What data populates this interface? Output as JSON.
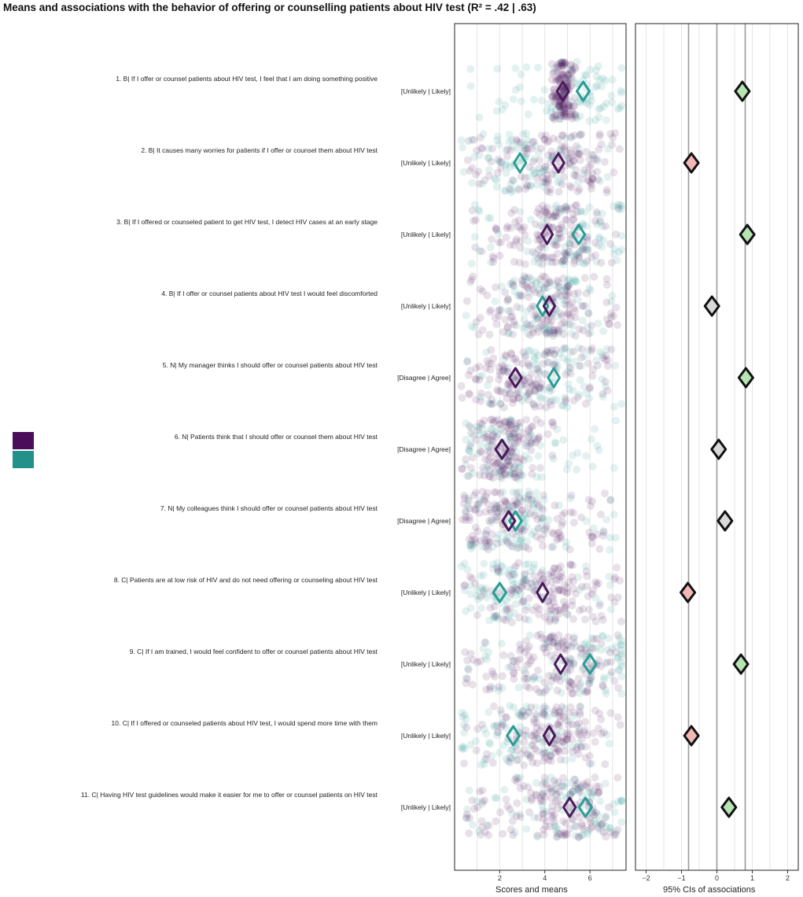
{
  "title": "Means and associations with the behavior of offering or counselling patients about HIV test (R² = .42 | .63)",
  "colors": {
    "group_a": "#4a1a5c",
    "group_b": "#2a9d95",
    "positive_fill": "#b7e4b3",
    "negative_fill": "#f2b8b5",
    "neutral_fill": "#d9d9d9",
    "legend_a": "#4b0d5a",
    "legend_b": "#23908a"
  },
  "legend": {
    "swatches": [
      "group_a",
      "group_b"
    ]
  },
  "chart_data": [
    {
      "type": "scatter",
      "xlabel": "Scores and means",
      "xlim": [
        0,
        7.6
      ],
      "x_ticks": [
        2,
        4,
        6
      ],
      "items": [
        {
          "label": "1. B| If I offer or counsel patients about HIV test, I feel that I am doing something positive",
          "anchors": "[Unlikely | Likely]",
          "mean_a": 4.8,
          "mean_b": 5.7,
          "spread_a": [
            4.3,
            5.4
          ],
          "spread_b": [
            0.5,
            7.4
          ]
        },
        {
          "label": "2. B| It causes many worries for patients if I offer or counsel them about HIV test",
          "anchors": "[Unlikely | Likely]",
          "mean_a": 4.6,
          "mean_b": 2.9,
          "spread_a": [
            0.5,
            7.4
          ],
          "spread_b": [
            0.3,
            7.0
          ]
        },
        {
          "label": "3. B| If I offered or counseled patient to get HIV test, I detect HIV cases at an early stage",
          "anchors": "[Unlikely | Likely]",
          "mean_a": 4.1,
          "mean_b": 5.5,
          "spread_a": [
            0.7,
            7.3
          ],
          "spread_b": [
            0.5,
            7.4
          ]
        },
        {
          "label": "4. B| If I offer or counsel patients about HIV test I would feel discomforted",
          "anchors": "[Unlikely | Likely]",
          "mean_a": 4.2,
          "mean_b": 3.9,
          "spread_a": [
            0.4,
            7.4
          ],
          "spread_b": [
            0.5,
            7.2
          ]
        },
        {
          "label": "5. N| My manager thinks I should offer or counsel patients about HIV test",
          "anchors": "[Disagree | Agree]",
          "mean_a": 2.7,
          "mean_b": 4.4,
          "spread_a": [
            0.3,
            7.2
          ],
          "spread_b": [
            0.5,
            7.4
          ]
        },
        {
          "label": "6. N| Patients think that I should offer or counsel them about HIV test",
          "anchors": "[Disagree | Agree]",
          "mean_a": 2.1,
          "mean_b": 2.1,
          "spread_a": [
            0.3,
            4.4
          ],
          "spread_b": [
            0.5,
            7.2
          ]
        },
        {
          "label": "7. N| My colleagues think I should offer or counsel patients about HIV test",
          "anchors": "[Disagree | Agree]",
          "mean_a": 2.4,
          "mean_b": 2.7,
          "spread_a": [
            0.3,
            7.0
          ],
          "spread_b": [
            0.5,
            7.2
          ]
        },
        {
          "label": "8. C| Patients are at low risk of HIV and do not need offering or counseling about HIV test",
          "anchors": "[Unlikely | Likely]",
          "mean_a": 3.9,
          "mean_b": 2.0,
          "spread_a": [
            0.4,
            7.4
          ],
          "spread_b": [
            0.3,
            7.0
          ]
        },
        {
          "label": "9. C| If I am trained, I would feel confident to offer or counsel patients about HIV test",
          "anchors": "[Unlikely | Likely]",
          "mean_a": 4.7,
          "mean_b": 6.0,
          "spread_a": [
            0.4,
            7.3
          ],
          "spread_b": [
            0.5,
            7.4
          ]
        },
        {
          "label": "10. C| If I offered or counseled patients about HIV test, I would spend more time with them",
          "anchors": "[Unlikely | Likely]",
          "mean_a": 4.2,
          "mean_b": 2.6,
          "spread_a": [
            0.4,
            7.4
          ],
          "spread_b": [
            0.3,
            7.0
          ]
        },
        {
          "label": "11. C| Having HIV test guidelines would make it easier for me to offer or counsel patients on HIV test",
          "anchors": "[Unlikely | Likely]",
          "mean_a": 5.1,
          "mean_b": 5.8,
          "spread_a": [
            0.5,
            7.4
          ],
          "spread_b": [
            0.5,
            7.4
          ]
        }
      ]
    },
    {
      "type": "scatter",
      "xlabel": "95% CIs of associations",
      "xlim": [
        -2.3,
        2.3
      ],
      "x_ticks": [
        -2,
        -1,
        0,
        1,
        2
      ],
      "x_tick_labels": [
        "−2",
        "−1",
        "0",
        "1",
        "2"
      ],
      "reference_lines": [
        -0.8,
        0,
        0.8
      ],
      "associations": [
        {
          "value": 0.72,
          "fill": "positive"
        },
        {
          "value": -0.72,
          "fill": "negative"
        },
        {
          "value": 0.86,
          "fill": "positive"
        },
        {
          "value": -0.14,
          "fill": "neutral"
        },
        {
          "value": 0.82,
          "fill": "positive"
        },
        {
          "value": 0.05,
          "fill": "neutral"
        },
        {
          "value": 0.23,
          "fill": "neutral"
        },
        {
          "value": -0.82,
          "fill": "negative"
        },
        {
          "value": 0.68,
          "fill": "positive"
        },
        {
          "value": -0.72,
          "fill": "negative"
        },
        {
          "value": 0.34,
          "fill": "positive"
        }
      ]
    }
  ]
}
